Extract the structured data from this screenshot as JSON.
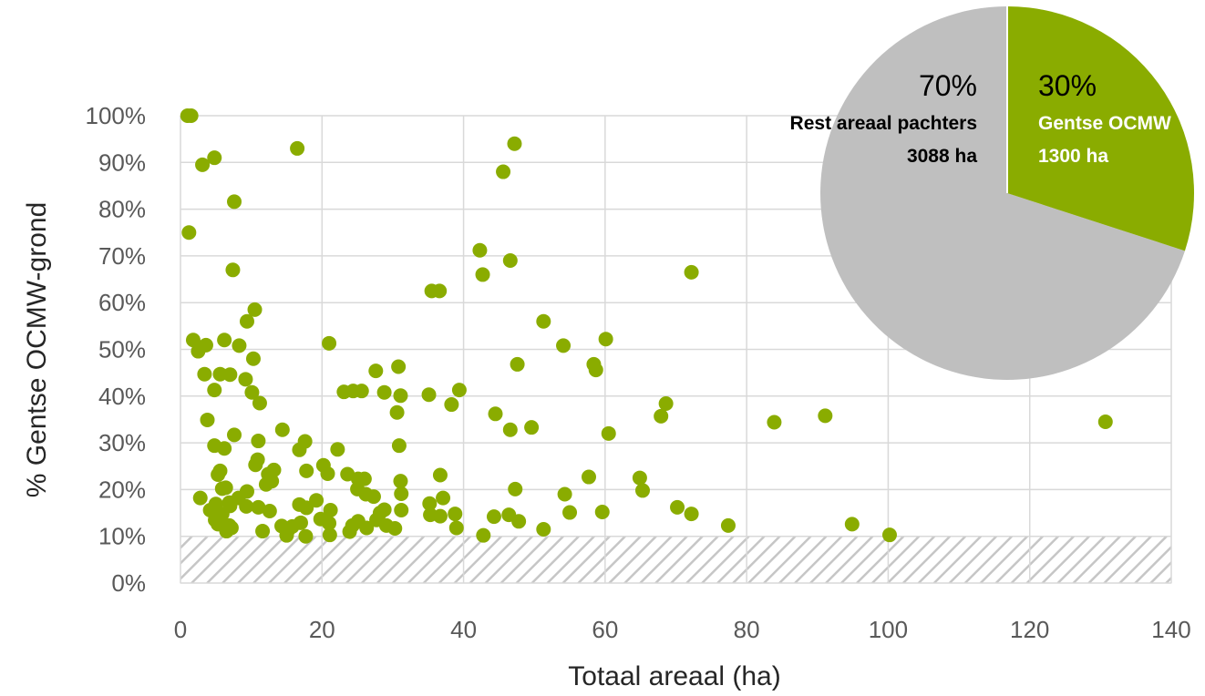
{
  "chart_data": [
    {
      "type": "scatter",
      "xlabel": "Totaal areaal (ha)",
      "ylabel": "% Gentse OCMW-grond",
      "xlim": [
        0,
        140
      ],
      "ylim": [
        0,
        100
      ],
      "x_ticks": [
        "0",
        "20",
        "40",
        "60",
        "80",
        "100",
        "120",
        "140"
      ],
      "y_ticks": [
        "0%",
        "10%",
        "20%",
        "30%",
        "40%",
        "50%",
        "60%",
        "70%",
        "80%",
        "90%",
        "100%"
      ],
      "grid": true,
      "color": "#8aac00",
      "hatched_band": [
        0,
        10
      ],
      "points": [
        [
          1.0,
          100
        ],
        [
          1.5,
          100
        ],
        [
          16.5,
          93
        ],
        [
          47.2,
          94
        ],
        [
          45.6,
          88
        ],
        [
          4.8,
          91
        ],
        [
          3.1,
          89.5
        ],
        [
          7.6,
          81.6
        ],
        [
          1.2,
          75
        ],
        [
          42.3,
          71.2
        ],
        [
          46.6,
          69
        ],
        [
          42.7,
          66
        ],
        [
          7.4,
          67
        ],
        [
          72.2,
          66.5
        ],
        [
          35.5,
          62.5
        ],
        [
          36.6,
          62.5
        ],
        [
          10.5,
          58.5
        ],
        [
          9.4,
          56
        ],
        [
          51.3,
          56
        ],
        [
          21,
          51.3
        ],
        [
          60.1,
          52.2
        ],
        [
          1.8,
          52
        ],
        [
          6.2,
          52
        ],
        [
          8.3,
          50.8
        ],
        [
          3.6,
          50.9
        ],
        [
          2.5,
          49.6
        ],
        [
          54.1,
          50.8
        ],
        [
          10.3,
          48
        ],
        [
          47.6,
          46.8
        ],
        [
          58.4,
          46.8
        ],
        [
          58.7,
          45.6
        ],
        [
          27.6,
          45.4
        ],
        [
          30.8,
          46.3
        ],
        [
          3.4,
          44.7
        ],
        [
          5.6,
          44.7
        ],
        [
          7,
          44.6
        ],
        [
          9.2,
          43.6
        ],
        [
          4.8,
          41.3
        ],
        [
          10.1,
          40.8
        ],
        [
          23.1,
          40.9
        ],
        [
          24.4,
          41.1
        ],
        [
          25.6,
          41.1
        ],
        [
          28.8,
          40.8
        ],
        [
          31.1,
          40.1
        ],
        [
          35.1,
          40.3
        ],
        [
          39.4,
          41.3
        ],
        [
          11.2,
          38.5
        ],
        [
          38.3,
          38.2
        ],
        [
          30.6,
          36.5
        ],
        [
          44.5,
          36.2
        ],
        [
          68.6,
          38.4
        ],
        [
          67.9,
          35.7
        ],
        [
          3.8,
          34.9
        ],
        [
          46.6,
          32.8
        ],
        [
          49.6,
          33.3
        ],
        [
          60.5,
          32
        ],
        [
          83.9,
          34.4
        ],
        [
          91.1,
          35.8
        ],
        [
          130.7,
          34.5
        ],
        [
          7.6,
          31.7
        ],
        [
          11,
          30.4
        ],
        [
          14.4,
          32.8
        ],
        [
          17.6,
          30.3
        ],
        [
          16.8,
          28.5
        ],
        [
          4.8,
          29.4
        ],
        [
          6.2,
          28.8
        ],
        [
          22.2,
          28.6
        ],
        [
          30.9,
          29.4
        ],
        [
          10.9,
          26.4
        ],
        [
          10.6,
          25.3
        ],
        [
          12.4,
          23.3
        ],
        [
          13.2,
          24.2
        ],
        [
          5.6,
          24
        ],
        [
          5.3,
          23.2
        ],
        [
          17.8,
          24
        ],
        [
          20.2,
          25.2
        ],
        [
          20.8,
          23.4
        ],
        [
          23.6,
          23.3
        ],
        [
          25.1,
          22.3
        ],
        [
          26,
          22.3
        ],
        [
          31.1,
          21.8
        ],
        [
          36.7,
          23.1
        ],
        [
          57.7,
          22.7
        ],
        [
          64.9,
          22.5
        ],
        [
          12.1,
          21.1
        ],
        [
          12.9,
          21.8
        ],
        [
          25,
          20.1
        ],
        [
          26.2,
          19
        ],
        [
          27.3,
          18.5
        ],
        [
          31.2,
          19.1
        ],
        [
          37.1,
          18.2
        ],
        [
          47.3,
          20.1
        ],
        [
          54.3,
          19
        ],
        [
          65.3,
          19.8
        ],
        [
          2.8,
          18.2
        ],
        [
          5.9,
          20.2
        ],
        [
          6.4,
          20.4
        ],
        [
          7,
          16.5
        ],
        [
          8.2,
          18.2
        ],
        [
          9.4,
          19.6
        ],
        [
          4.2,
          15.6
        ],
        [
          5,
          16.9
        ],
        [
          5.9,
          14.8
        ],
        [
          6.9,
          17.2
        ],
        [
          9.3,
          16.4
        ],
        [
          11,
          16.2
        ],
        [
          12.6,
          15.4
        ],
        [
          16.8,
          16.8
        ],
        [
          17.8,
          16.1
        ],
        [
          19.2,
          17.7
        ],
        [
          21.2,
          15.6
        ],
        [
          28.2,
          15
        ],
        [
          28.8,
          15.7
        ],
        [
          31.2,
          15.6
        ],
        [
          35.2,
          17
        ],
        [
          35.3,
          14.6
        ],
        [
          36.7,
          14.3
        ],
        [
          38.8,
          14.8
        ],
        [
          44.3,
          14.2
        ],
        [
          46.4,
          14.6
        ],
        [
          47.8,
          13.2
        ],
        [
          55,
          15.1
        ],
        [
          59.6,
          15.2
        ],
        [
          70.2,
          16.2
        ],
        [
          72.2,
          14.8
        ],
        [
          4.9,
          13.5
        ],
        [
          5.3,
          12.6
        ],
        [
          6.9,
          12.3
        ],
        [
          7.2,
          11.8
        ],
        [
          14.3,
          12.2
        ],
        [
          15.2,
          11.3
        ],
        [
          15.8,
          12.1
        ],
        [
          17,
          12.9
        ],
        [
          19.8,
          13.7
        ],
        [
          21,
          12.8
        ],
        [
          24.3,
          12.3
        ],
        [
          25.1,
          13.2
        ],
        [
          26.3,
          11.8
        ],
        [
          27.7,
          13.5
        ],
        [
          29.1,
          12.3
        ],
        [
          30.3,
          11.7
        ],
        [
          39,
          11.8
        ],
        [
          51.3,
          11.5
        ],
        [
          77.4,
          12.3
        ],
        [
          94.9,
          12.6
        ],
        [
          6.5,
          11.1
        ],
        [
          11.6,
          11.1
        ],
        [
          15,
          10.2
        ],
        [
          17.7,
          10
        ],
        [
          21.1,
          10.3
        ],
        [
          23.9,
          11
        ],
        [
          42.8,
          10.2
        ],
        [
          100.2,
          10.3
        ]
      ]
    },
    {
      "type": "pie",
      "colors": {
        "rest": "#bfbfbf",
        "ocmw": "#8aac00"
      },
      "slices": [
        {
          "name": "Gentse OCMW",
          "percent": 30,
          "percent_label": "30%",
          "area_label": "1300 ha",
          "value": 1300
        },
        {
          "name": "Rest areaal pachters",
          "percent": 70,
          "percent_label": "70%",
          "area_label": "3088 ha",
          "value": 3088
        }
      ]
    }
  ]
}
